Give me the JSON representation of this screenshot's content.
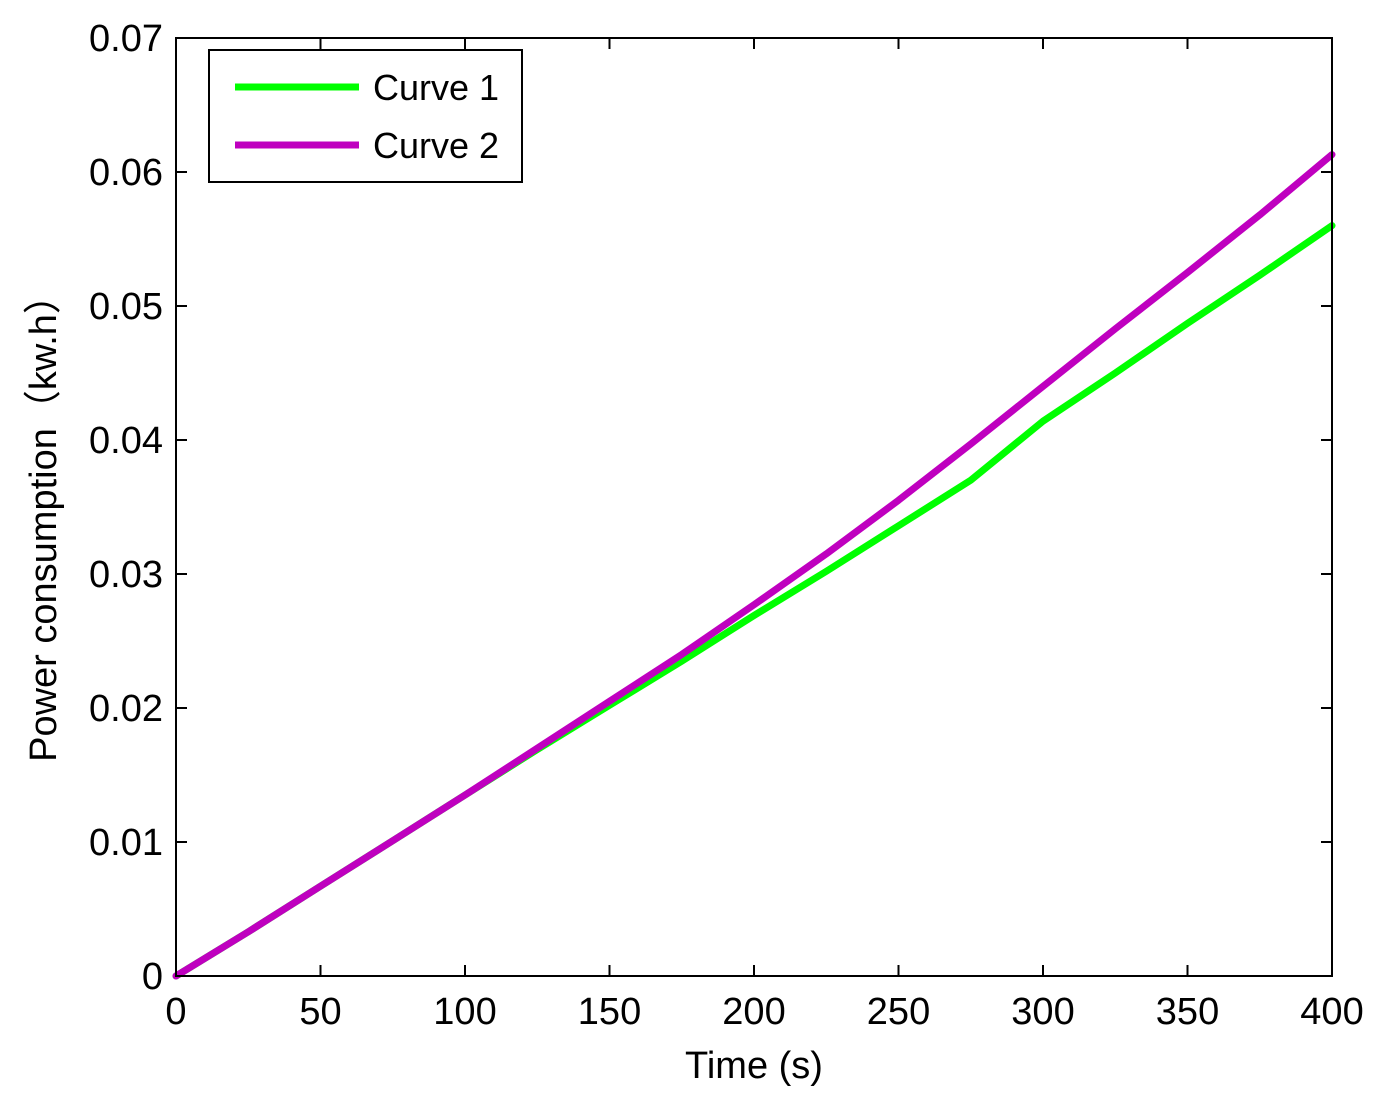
{
  "chart_data": {
    "type": "line",
    "title": "",
    "xlabel": "Time (s)",
    "ylabel": "Power consumption（kw.h）",
    "xlim": [
      0,
      400
    ],
    "ylim": [
      0,
      0.07
    ],
    "xticks": [
      0,
      50,
      100,
      150,
      200,
      250,
      300,
      350,
      400
    ],
    "xtick_labels": [
      "0",
      "50",
      "100",
      "150",
      "200",
      "250",
      "300",
      "350",
      "400"
    ],
    "yticks": [
      0,
      0.01,
      0.02,
      0.03,
      0.04,
      0.05,
      0.06,
      0.07
    ],
    "ytick_labels": [
      "0",
      "0.01",
      "0.02",
      "0.03",
      "0.04",
      "0.05",
      "0.06",
      "0.07"
    ],
    "grid": false,
    "legend_position": "top-left",
    "x": [
      0,
      25,
      50,
      75,
      100,
      125,
      150,
      175,
      200,
      225,
      250,
      275,
      300,
      325,
      350,
      375,
      400
    ],
    "series": [
      {
        "name": "Curve 1",
        "color": "#00ff00",
        "values": [
          0,
          0.0033,
          0.0067,
          0.0101,
          0.0135,
          0.0169,
          0.0202,
          0.0235,
          0.0269,
          0.0302,
          0.0336,
          0.037,
          0.0414,
          0.045,
          0.0487,
          0.0523,
          0.056
        ]
      },
      {
        "name": "Curve 2",
        "color": "#bf00bf",
        "values": [
          0,
          0.0033,
          0.0067,
          0.0101,
          0.0135,
          0.017,
          0.0205,
          0.024,
          0.0277,
          0.0315,
          0.0355,
          0.0397,
          0.044,
          0.0483,
          0.0525,
          0.0568,
          0.0613
        ]
      }
    ]
  }
}
